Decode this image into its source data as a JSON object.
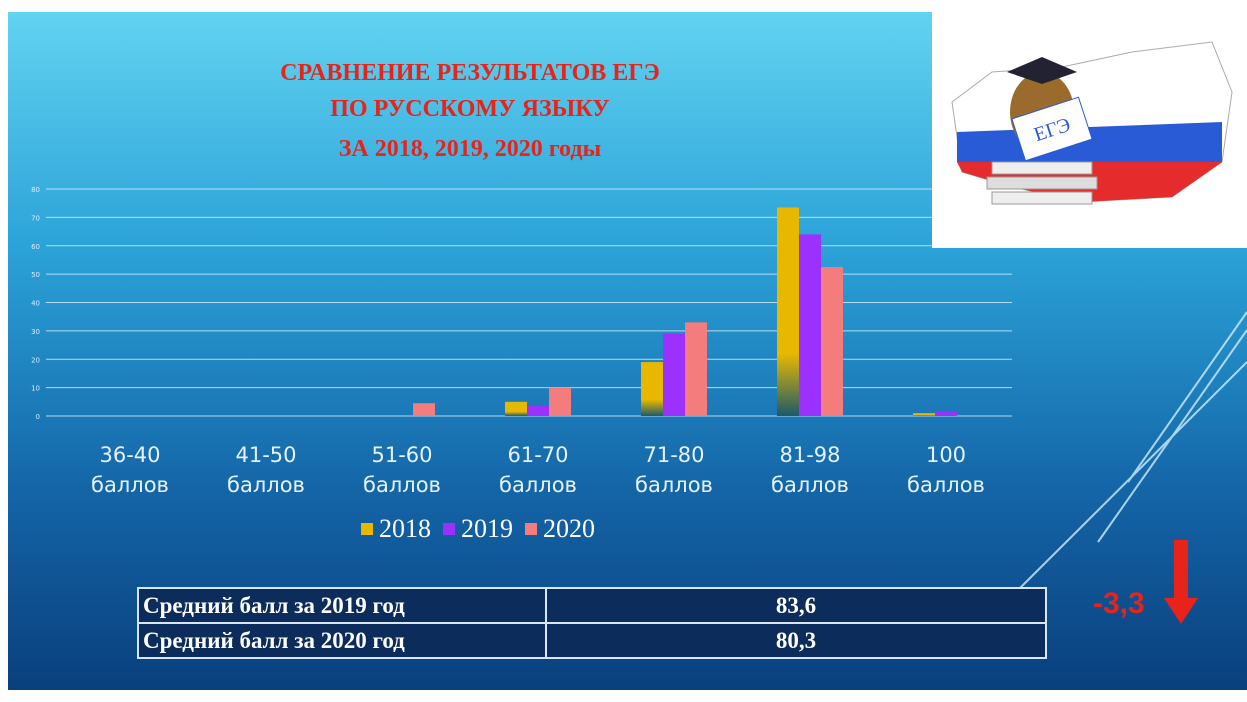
{
  "chart_data": {
    "type": "bar",
    "title": [
      "СРАВНЕНИЕ РЕЗУЛЬТАТОВ ЕГЭ",
      "ПО РУССКОМУ ЯЗЫКУ",
      "ЗА 2018, 2019, 2020 годы"
    ],
    "categories": [
      "36-40 баллов",
      "41-50 баллов",
      "51-60 баллов",
      "61-70 баллов",
      "71-80 баллов",
      "81-98 баллов",
      "100 баллов"
    ],
    "series": [
      {
        "name": "2018",
        "color": "#e8b800",
        "values": [
          0,
          0,
          0,
          5,
          19,
          73.5,
          1
        ]
      },
      {
        "name": "2019",
        "color": "#9b30ff",
        "values": [
          0,
          0,
          0,
          3.5,
          29,
          64,
          1.5
        ]
      },
      {
        "name": "2020",
        "color": "#f47c7c",
        "values": [
          0,
          0,
          4.5,
          10,
          33,
          52.5,
          0
        ]
      }
    ],
    "ylim": [
      0,
      80
    ],
    "yticks": [
      0,
      10,
      20,
      30,
      40,
      50,
      60,
      70,
      80
    ],
    "grid": true,
    "legend": "bottom"
  },
  "table": {
    "rows": [
      [
        "Средний балл за 2019 год",
        "83,6"
      ],
      [
        "Средний балл за 2020 год",
        "80,3"
      ]
    ]
  },
  "annotation": "-3,3",
  "logo_text": "ЕГЭ"
}
